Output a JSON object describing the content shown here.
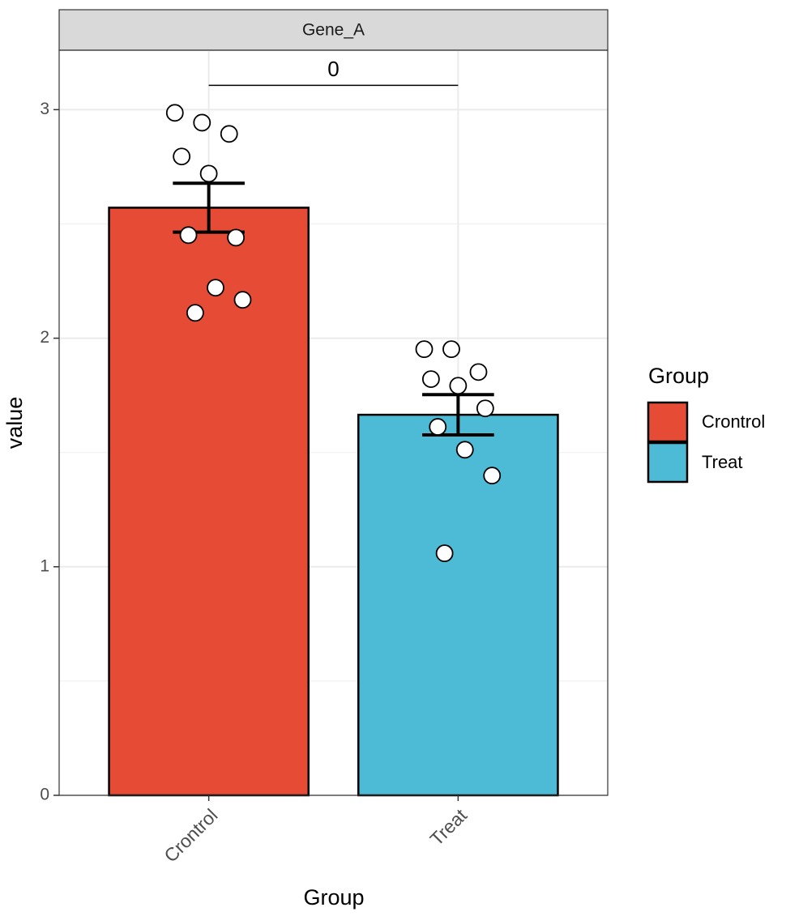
{
  "chart_data": {
    "type": "bar",
    "strip": "Gene_A",
    "x_label": "Group",
    "y_label": "value",
    "categories": [
      "Crontrol",
      "Treat"
    ],
    "values": [
      2.571,
      1.665
    ],
    "errors": [
      0.107,
      0.088
    ],
    "colors": [
      "#E64B35",
      "#4DBBD5"
    ],
    "points": [
      [
        2.986,
        2.943,
        2.894,
        2.795,
        2.72,
        2.44,
        2.451,
        2.221,
        2.168,
        2.111
      ],
      [
        1.952,
        1.952,
        1.852,
        1.821,
        1.792,
        1.693,
        1.612,
        1.512,
        1.399,
        1.059
      ]
    ],
    "significance": "0",
    "ylim": [
      0,
      3.26
    ],
    "yticks": [
      0,
      1,
      2,
      3
    ],
    "grid": true,
    "legend_title": "Group",
    "legend": "right"
  }
}
